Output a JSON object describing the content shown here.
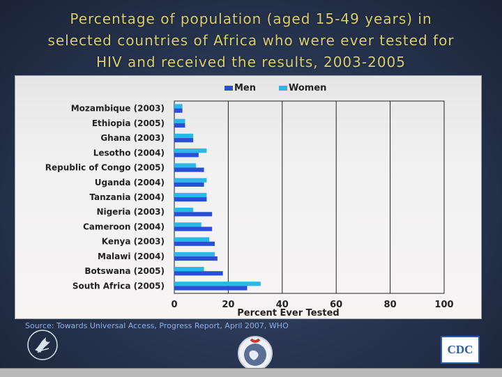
{
  "slide": {
    "title_lines": [
      "Percentage of population (aged 15-49 years) in",
      "selected countries of Africa who were ever tested for",
      "HIV and received the results, 2003-2005"
    ],
    "source": "Source: Towards Universal Access, Progress Report, April 2007, WHO",
    "logos": {
      "cdc": "CDC"
    },
    "icons": {
      "hhs": "hhs-eagle-icon",
      "globe": "globe-icon",
      "cdc": "cdc-logo"
    }
  },
  "chart_data": {
    "type": "bar",
    "orientation": "horizontal",
    "title": "",
    "xlabel": "Percent Ever Tested",
    "ylabel": "",
    "xlim": [
      0,
      100
    ],
    "xticks": [
      0,
      20,
      40,
      60,
      80,
      100
    ],
    "grid": true,
    "legend_position": "top",
    "categories": [
      "Mozambique (2003)",
      "Ethiopia (2005)",
      "Ghana (2003)",
      "Lesotho (2004)",
      "Republic of Congo (2005)",
      "Uganda (2004)",
      "Tanzania (2004)",
      "Nigeria (2003)",
      "Cameroon (2004)",
      "Kenya (2003)",
      "Malawi (2004)",
      "Botswana (2005)",
      "South Africa (2005)"
    ],
    "series": [
      {
        "name": "Men",
        "color": "#2a4fd6",
        "values": [
          3,
          4,
          7,
          9,
          11,
          11,
          12,
          14,
          14,
          15,
          16,
          18,
          27
        ]
      },
      {
        "name": "Women",
        "color": "#2bb8e8",
        "values": [
          3,
          4,
          7,
          12,
          8,
          12,
          12,
          7,
          10,
          13,
          15,
          11,
          32
        ]
      }
    ]
  }
}
